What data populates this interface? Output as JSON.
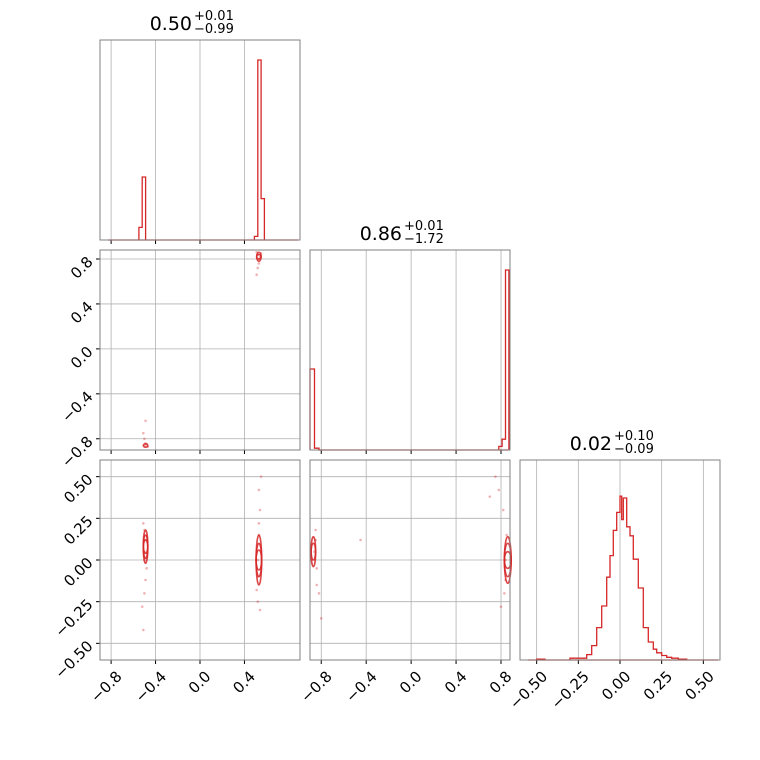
{
  "colors": {
    "series": "#d62728",
    "grid": "#b0b0b0",
    "frame": "#808080"
  },
  "chart_data": {
    "type": "corner",
    "parameters": [
      {
        "index": 0,
        "range": [
          -0.9,
          0.9
        ],
        "ticks": [
          "-0.8",
          "-0.4",
          "0.0",
          "0.4"
        ],
        "tick_values": [
          -0.8,
          -0.4,
          0.0,
          0.4
        ]
      },
      {
        "index": 1,
        "range": [
          -0.9,
          0.88
        ],
        "ticks": [
          "-0.8",
          "-0.4",
          "0.0",
          "0.4",
          "0.8"
        ],
        "tick_values": [
          -0.8,
          -0.4,
          0.0,
          0.4,
          0.8
        ]
      },
      {
        "index": 2,
        "range": [
          -0.6,
          0.6
        ],
        "ticks": [
          "-0.50",
          "-0.25",
          "0.00",
          "0.25",
          "0.50"
        ],
        "tick_values": [
          -0.5,
          -0.25,
          0.0,
          0.25,
          0.5
        ]
      }
    ],
    "titles": [
      {
        "value": "0.50",
        "plus": "+0.01",
        "minus": "−0.99"
      },
      {
        "value": "0.86",
        "plus": "+0.01",
        "minus": "−1.72"
      },
      {
        "value": "0.02",
        "plus": "+0.10",
        "minus": "−0.09"
      }
    ],
    "histograms": [
      {
        "param": 0,
        "bins": [
          [
            -0.55,
            -0.52,
            0.07
          ],
          [
            -0.52,
            -0.49,
            0.35
          ],
          [
            0.49,
            0.52,
            0.02
          ],
          [
            0.52,
            0.55,
            1.0
          ],
          [
            0.55,
            0.58,
            0.23
          ]
        ]
      },
      {
        "param": 1,
        "bins": [
          [
            -0.9,
            -0.86,
            0.45
          ],
          [
            -0.86,
            -0.82,
            0.01
          ],
          [
            0.78,
            0.81,
            0.02
          ],
          [
            0.81,
            0.84,
            0.06
          ],
          [
            0.84,
            0.87,
            1.0
          ]
        ]
      },
      {
        "param": 2,
        "bins": [
          [
            -0.5,
            -0.45,
            0.005
          ],
          [
            -0.3,
            -0.25,
            0.01
          ],
          [
            -0.25,
            -0.2,
            0.01
          ],
          [
            -0.2,
            -0.17,
            0.03
          ],
          [
            -0.17,
            -0.14,
            0.08
          ],
          [
            -0.14,
            -0.11,
            0.18
          ],
          [
            -0.11,
            -0.08,
            0.3
          ],
          [
            -0.08,
            -0.06,
            0.46
          ],
          [
            -0.06,
            -0.04,
            0.58
          ],
          [
            -0.04,
            -0.02,
            0.72
          ],
          [
            -0.02,
            0.0,
            0.82
          ],
          [
            0.0,
            0.01,
            0.91
          ],
          [
            0.01,
            0.02,
            0.78
          ],
          [
            0.02,
            0.04,
            0.9
          ],
          [
            0.04,
            0.06,
            0.74
          ],
          [
            0.06,
            0.08,
            0.69
          ],
          [
            0.08,
            0.11,
            0.56
          ],
          [
            0.11,
            0.14,
            0.4
          ],
          [
            0.14,
            0.17,
            0.18
          ],
          [
            0.17,
            0.2,
            0.1
          ],
          [
            0.2,
            0.22,
            0.06
          ],
          [
            0.22,
            0.25,
            0.04
          ],
          [
            0.25,
            0.28,
            0.025
          ],
          [
            0.28,
            0.31,
            0.015
          ],
          [
            0.31,
            0.35,
            0.01
          ],
          [
            0.35,
            0.4,
            0.005
          ]
        ]
      }
    ],
    "scatter_2d": [
      {
        "x_param": 0,
        "y_param": 1,
        "points": [
          [
            0.52,
            0.84
          ],
          [
            0.53,
            0.8
          ],
          [
            0.51,
            0.86
          ],
          [
            0.54,
            0.82
          ],
          [
            0.52,
            0.72
          ],
          [
            0.51,
            0.66
          ],
          [
            0.53,
            0.76
          ],
          [
            0.55,
            0.85
          ],
          [
            -0.5,
            -0.86
          ],
          [
            -0.48,
            -0.85
          ],
          [
            -0.5,
            -0.8
          ],
          [
            -0.51,
            -0.75
          ],
          [
            -0.49,
            -0.84
          ],
          [
            -0.49,
            -0.64
          ],
          [
            -0.47,
            -0.87
          ]
        ]
      },
      {
        "x_param": 0,
        "y_param": 2,
        "points": [
          [
            -0.5,
            0.05
          ],
          [
            -0.49,
            0.12
          ],
          [
            -0.5,
            0.0
          ],
          [
            -0.48,
            -0.05
          ],
          [
            -0.5,
            0.18
          ],
          [
            -0.49,
            -0.12
          ],
          [
            -0.5,
            -0.2
          ],
          [
            -0.51,
            0.22
          ],
          [
            -0.52,
            -0.28
          ],
          [
            -0.51,
            -0.42
          ],
          [
            0.52,
            0.0
          ],
          [
            0.53,
            0.15
          ],
          [
            0.52,
            -0.1
          ],
          [
            0.54,
            0.3
          ],
          [
            0.53,
            0.42
          ],
          [
            0.52,
            -0.25
          ],
          [
            0.55,
            0.5
          ],
          [
            0.51,
            -0.18
          ],
          [
            0.53,
            0.22
          ],
          [
            0.54,
            -0.3
          ]
        ]
      },
      {
        "x_param": 1,
        "y_param": 2,
        "points": [
          [
            -0.86,
            0.05
          ],
          [
            -0.85,
            0.12
          ],
          [
            -0.84,
            -0.05
          ],
          [
            -0.85,
            0.18
          ],
          [
            -0.82,
            -0.2
          ],
          [
            -0.8,
            -0.35
          ],
          [
            -0.84,
            -0.15
          ],
          [
            0.84,
            0.0
          ],
          [
            0.85,
            0.15
          ],
          [
            0.84,
            -0.12
          ],
          [
            0.82,
            0.3
          ],
          [
            0.78,
            0.42
          ],
          [
            0.75,
            0.5
          ],
          [
            0.83,
            -0.2
          ],
          [
            0.8,
            -0.28
          ],
          [
            0.7,
            0.38
          ],
          [
            -0.45,
            0.12
          ]
        ]
      }
    ],
    "contours_2d": [
      {
        "x_param": 0,
        "y_param": 2,
        "center": [
          -0.49,
          0.08
        ],
        "rx": 0.02,
        "ry": [
          0.04,
          0.07,
          0.1
        ]
      },
      {
        "x_param": 0,
        "y_param": 2,
        "center": [
          0.53,
          0.0
        ],
        "rx": 0.025,
        "ry": [
          0.06,
          0.1,
          0.15
        ]
      },
      {
        "x_param": 0,
        "y_param": 1,
        "center": [
          0.53,
          0.82
        ],
        "rx": 0.02,
        "ry": [
          0.02,
          0.04
        ]
      },
      {
        "x_param": 0,
        "y_param": 1,
        "center": [
          -0.49,
          -0.86
        ],
        "rx": 0.02,
        "ry": [
          0.015
        ]
      },
      {
        "x_param": 1,
        "y_param": 2,
        "center": [
          0.86,
          0.0
        ],
        "rx": 0.03,
        "ry": [
          0.05,
          0.1,
          0.14
        ]
      },
      {
        "x_param": 1,
        "y_param": 2,
        "center": [
          -0.87,
          0.05
        ],
        "rx": 0.02,
        "ry": [
          0.05,
          0.09
        ]
      }
    ]
  }
}
